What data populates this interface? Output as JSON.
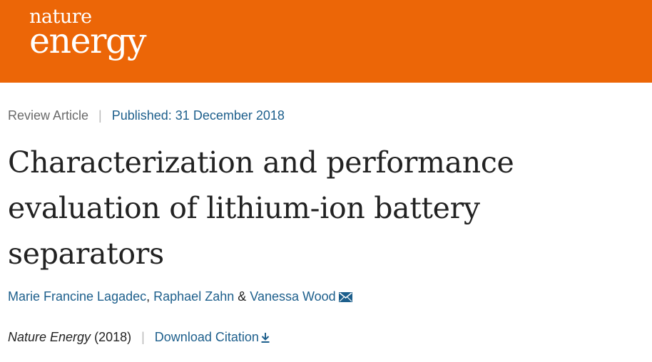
{
  "header": {
    "logo_line1": "nature",
    "logo_line2": "energy",
    "background_color": "#ec6607"
  },
  "article_meta": {
    "type": "Review Article",
    "separator": "|",
    "published": "Published: 31 December 2018"
  },
  "article": {
    "title": "Characterization and performance evaluation of lithium-ion battery separators"
  },
  "authors": {
    "items": [
      "Marie Francine Lagadec",
      "Raphael Zahn",
      "Vanessa Wood"
    ],
    "comma": ",",
    "ampersand": "&",
    "contact_icon": "envelope-icon"
  },
  "citation": {
    "journal": "Nature Energy",
    "year": "(2018)",
    "separator": "|",
    "download_label": "Download Citation",
    "download_icon": "download-arrow-icon"
  },
  "colors": {
    "link": "#1d5f8c",
    "text": "#222222",
    "muted": "#6a6a6a"
  }
}
